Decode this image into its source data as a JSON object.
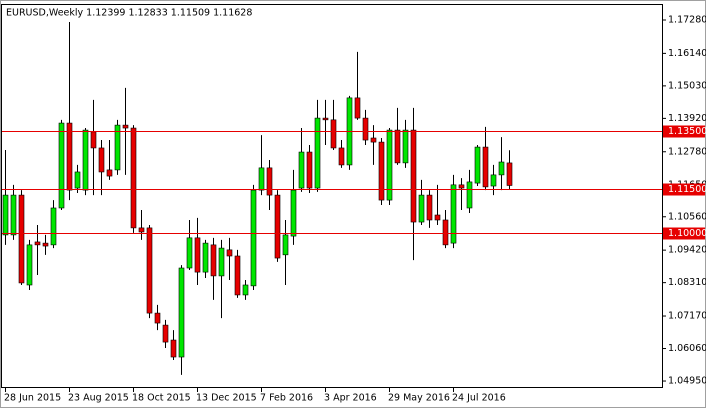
{
  "chart_data": {
    "type": "candlestick",
    "title": "EURUSD,Weekly  1.12399 1.12833 1.11509 1.11628",
    "categories": [
      "28 Jun 2015",
      null,
      null,
      null,
      null,
      null,
      null,
      null,
      "23 Aug 2015",
      null,
      null,
      null,
      null,
      null,
      null,
      null,
      "18 Oct 2015",
      null,
      null,
      null,
      null,
      null,
      null,
      null,
      "13 Dec 2015",
      null,
      null,
      null,
      null,
      null,
      null,
      null,
      "7 Feb 2016",
      null,
      null,
      null,
      null,
      null,
      null,
      null,
      "3 Apr 2016",
      null,
      null,
      null,
      null,
      null,
      null,
      null,
      "29 May 2016",
      null,
      null,
      null,
      null,
      null,
      null,
      null,
      "24 Jul 2016",
      null,
      null,
      null,
      null,
      null,
      null,
      null
    ],
    "open": [
      1.0994,
      1.0994,
      1.113,
      1.0823,
      1.097,
      1.0966,
      1.096,
      1.1086,
      1.1376,
      1.1154,
      1.1147,
      1.1346,
      1.1291,
      1.1216,
      1.1216,
      1.1369,
      1.1359,
      1.1018,
      1.1018,
      1.0727,
      1.0686,
      1.0635,
      1.0577,
      1.0881,
      1.0984,
      1.0867,
      1.096,
      1.0854,
      1.0943,
      1.0922,
      1.0789,
      1.082,
      1.1147,
      1.1223,
      1.113,
      1.0926,
      1.099,
      1.1154,
      1.1277,
      1.1154,
      1.1393,
      1.1387,
      1.1291,
      1.1233,
      1.1462,
      1.1393,
      1.1325,
      1.1311,
      1.1113,
      1.1352,
      1.124,
      1.1352,
      1.1038,
      1.113,
      1.1062,
      1.1045,
      1.0966,
      1.1165,
      1.1086,
      1.1171,
      1.1294,
      1.1161,
      1.1199,
      1.12399
    ],
    "high": [
      1.1284,
      1.1165,
      1.1147,
      1.0977,
      1.1028,
      1.0994,
      1.1113,
      1.1387,
      1.1721,
      1.1233,
      1.1359,
      1.1455,
      1.1318,
      1.1318,
      1.1387,
      1.1496,
      1.1369,
      1.1079,
      1.1028,
      1.0755,
      1.0704,
      1.0669,
      1.0891,
      1.1045,
      1.1052,
      1.0977,
      1.0984,
      1.0977,
      1.0984,
      1.0943,
      1.084,
      1.1165,
      1.1335,
      1.125,
      1.1147,
      1.1045,
      1.1216,
      1.1359,
      1.1301,
      1.1455,
      1.1455,
      1.1455,
      1.1318,
      1.1469,
      1.1619,
      1.1421,
      1.1369,
      1.1325,
      1.1359,
      1.1428,
      1.1387,
      1.1428,
      1.1182,
      1.1147,
      1.1165,
      1.1079,
      1.1199,
      1.1188,
      1.1216,
      1.1301,
      1.1363,
      1.1233,
      1.1328,
      1.12833
    ],
    "low": [
      1.096,
      1.0977,
      1.0823,
      1.0806,
      1.0857,
      1.0926,
      1.0949,
      1.1079,
      1.1113,
      1.1137,
      1.113,
      1.113,
      1.113,
      1.1182,
      1.1199,
      1.1199,
      1.1001,
      1.0977,
      1.071,
      1.0669,
      1.0608,
      1.0567,
      1.0516,
      1.0874,
      1.0823,
      1.0847,
      1.0772,
      1.071,
      1.084,
      1.0779,
      1.0772,
      1.0806,
      1.113,
      1.1079,
      1.0902,
      1.0823,
      1.096,
      1.1141,
      1.1137,
      1.1141,
      1.1301,
      1.1284,
      1.1223,
      1.1216,
      1.1387,
      1.1301,
      1.1233,
      1.1096,
      1.1096,
      1.1233,
      1.1223,
      1.0908,
      1.1028,
      1.1018,
      1.1028,
      1.0949,
      1.0949,
      1.1079,
      1.1069,
      1.1161,
      1.1147,
      1.113,
      1.1147,
      1.11509
    ],
    "close": [
      1.113,
      1.113,
      1.083,
      1.096,
      1.096,
      1.0956,
      1.1086,
      1.1376,
      1.1147,
      1.1209,
      1.1352,
      1.1291,
      1.1209,
      1.1195,
      1.1369,
      1.1359,
      1.1018,
      1.1004,
      1.0727,
      1.0693,
      1.0628,
      1.0577,
      1.0881,
      1.0984,
      1.0867,
      1.0966,
      1.0854,
      1.0949,
      1.0922,
      1.0789,
      1.0823,
      1.1147,
      1.1223,
      1.113,
      1.0915,
      1.0994,
      1.1147,
      1.1277,
      1.1154,
      1.1393,
      1.1387,
      1.1291,
      1.1233,
      1.1462,
      1.1393,
      1.1318,
      1.1311,
      1.1113,
      1.1352,
      1.124,
      1.1352,
      1.1038,
      1.113,
      1.1045,
      1.1045,
      1.096,
      1.1165,
      1.1154,
      1.1175,
      1.1294,
      1.1158,
      1.1199,
      1.1243,
      1.11628
    ],
    "up_color": "#00e600",
    "down_color": "#e60000",
    "wick_color": "#000000",
    "ylim": [
      1.04712,
      1.17792
    ],
    "yticks": [
      {
        "value": 1.1728,
        "label": "1.17280"
      },
      {
        "value": 1.1614,
        "label": "1.16140"
      },
      {
        "value": 1.1503,
        "label": "1.15030"
      },
      {
        "value": 1.1392,
        "label": "1.13920"
      },
      {
        "value": 1.1278,
        "label": "1.12780"
      },
      {
        "value": 1.1165,
        "label": "1.11650"
      },
      {
        "value": 1.1056,
        "label": "1.10560"
      },
      {
        "value": 1.0942,
        "label": "1.09420"
      },
      {
        "value": 1.0831,
        "label": "1.08310"
      },
      {
        "value": 1.0717,
        "label": "1.07170"
      },
      {
        "value": 1.0606,
        "label": "1.06060"
      },
      {
        "value": 1.0495,
        "label": "1.04950"
      }
    ],
    "levels": [
      {
        "value": 1.135,
        "label": "1.13500",
        "color": "#e60000"
      },
      {
        "value": 1.115,
        "label": "1.11500",
        "color": "#e60000"
      },
      {
        "value": 1.1,
        "label": "1.10000",
        "color": "#e60000"
      }
    ],
    "grid": false
  }
}
